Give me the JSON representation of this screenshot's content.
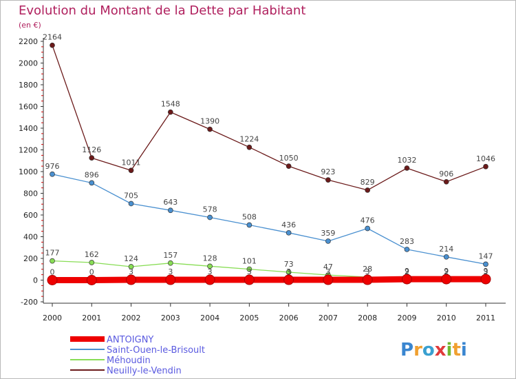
{
  "chart_data": {
    "type": "line",
    "title": "Evolution du Montant de la Dette par Habitant",
    "subtitle": "(en €)",
    "x": [
      "2000",
      "2001",
      "2002",
      "2003",
      "2004",
      "2005",
      "2006",
      "2007",
      "2008",
      "2009",
      "2010",
      "2011"
    ],
    "ylim": [
      -200,
      2200
    ],
    "yticks": [
      -200,
      0,
      200,
      400,
      600,
      800,
      1000,
      1200,
      1400,
      1600,
      1800,
      2000,
      2200
    ],
    "grid": false,
    "legend_position": "bottom-left",
    "series": [
      {
        "name": "ANTOIGNY",
        "color": "#ee0000",
        "values": [
          0,
          0,
          3,
          3,
          3,
          3,
          3,
          3,
          3,
          9,
          9,
          9
        ],
        "labels": [
          "0",
          "0",
          "3",
          "3",
          "3",
          "3",
          "3",
          "3",
          "3",
          "9",
          "9",
          "9"
        ]
      },
      {
        "name": "Saint-Ouen-le-Brisoult",
        "color": "#4a90d0",
        "values": [
          976,
          896,
          705,
          643,
          578,
          508,
          436,
          359,
          476,
          283,
          214,
          147
        ],
        "labels": [
          "976",
          "896",
          "705",
          "643",
          "578",
          "508",
          "436",
          "359",
          "476",
          "283",
          "214",
          "147"
        ]
      },
      {
        "name": "Méhoudin",
        "color": "#88dd55",
        "values": [
          177,
          162,
          124,
          157,
          128,
          101,
          73,
          47,
          28,
          2,
          2,
          3
        ],
        "labels": [
          "177",
          "162",
          "124",
          "157",
          "128",
          "101",
          "73",
          "47",
          "28",
          "2",
          "2",
          "3"
        ]
      },
      {
        "name": "Neuilly-le-Vendin",
        "color": "#6b1a1a",
        "values": [
          2164,
          1126,
          1011,
          1548,
          1390,
          1224,
          1050,
          923,
          829,
          1032,
          906,
          1046
        ],
        "labels": [
          "2164",
          "1126",
          "1011",
          "1548",
          "1390",
          "1224",
          "1050",
          "923",
          "829",
          "1032",
          "906",
          "1046"
        ]
      }
    ]
  },
  "logo": {
    "text": "Proxiti"
  }
}
